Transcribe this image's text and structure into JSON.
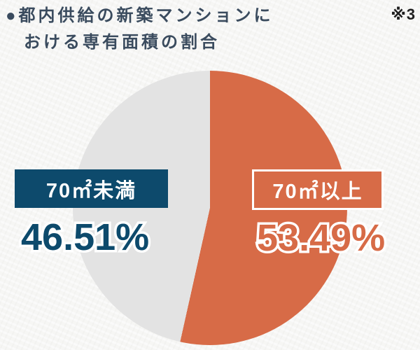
{
  "theme": {
    "bg": "#f6f6f4",
    "title": "#3a4b5e",
    "note": "#1f1f1f",
    "navy": "#0d4a6c",
    "orange": "#d76b47",
    "gray": "#e3e3e3"
  },
  "header": {
    "line1": "●都内供給の新築マンションに",
    "line2": "おける専有面積の割合",
    "note": "※3"
  },
  "chart_data": {
    "type": "pie",
    "title": "都内供給の新築マンションにおける専有面積の割合",
    "start_angle_deg": 0,
    "direction": "clockwise",
    "legend_position": "overlay",
    "slices": [
      {
        "label": "70㎡以上",
        "value": 53.49,
        "display": "53.49%",
        "color": "#d76b47",
        "label_style": "orange box with white border, white text"
      },
      {
        "label": "70㎡未満",
        "value": 46.51,
        "display": "46.51%",
        "color": "#e3e3e3",
        "label_style": "solid navy box, white text"
      }
    ]
  }
}
